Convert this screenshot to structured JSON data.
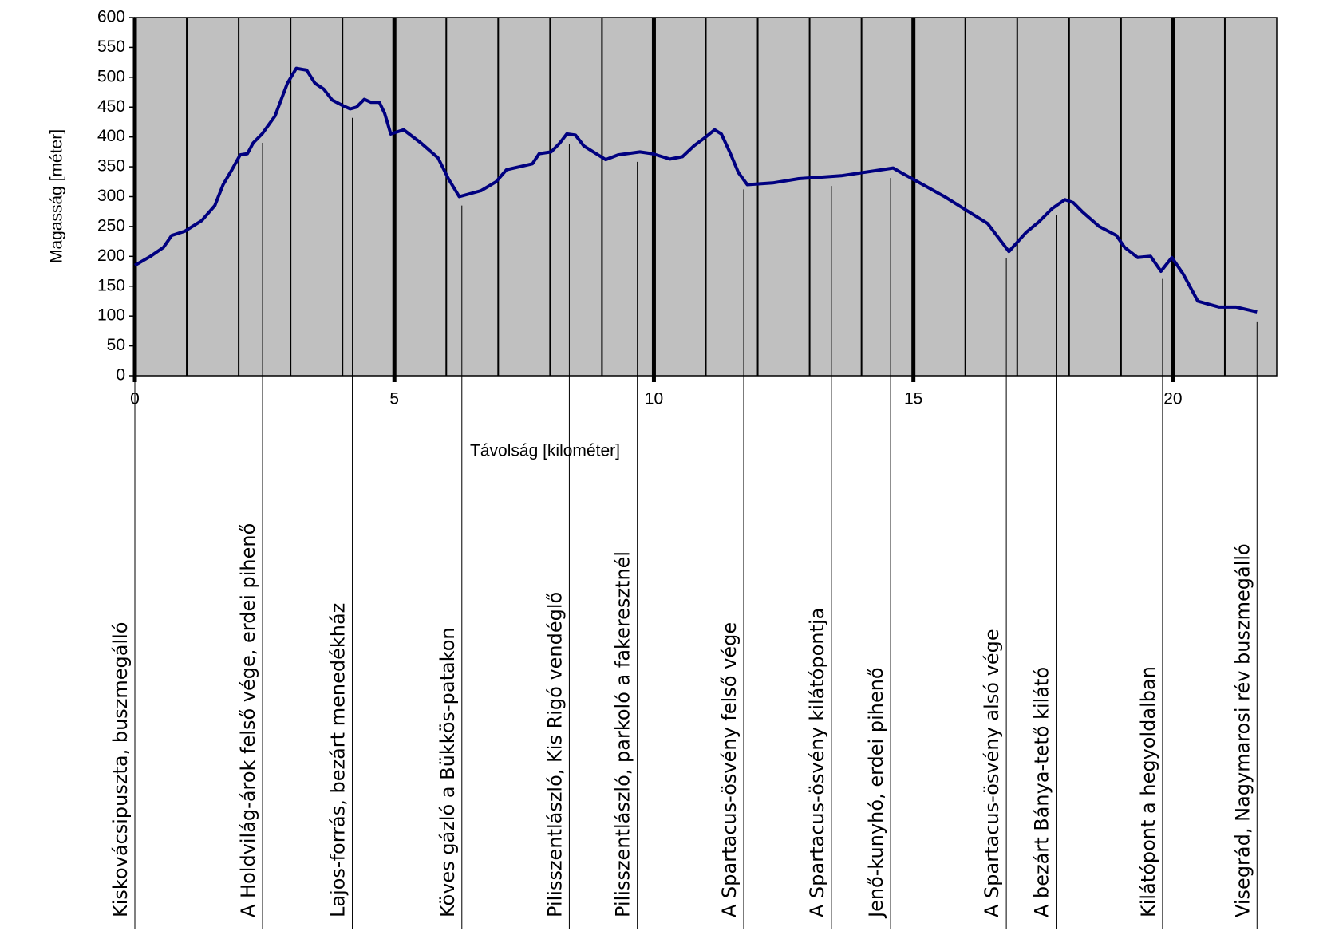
{
  "chart_data": {
    "type": "line",
    "xlabel": "Távolság [kilométer]",
    "ylabel": "Magasság [méter]",
    "xlim": [
      0,
      22
    ],
    "xticks": [
      0,
      5,
      10,
      15,
      20
    ],
    "xgrid": [
      1,
      2,
      3,
      4,
      6,
      7,
      8,
      9,
      11,
      12,
      13,
      14,
      16,
      17,
      18,
      19,
      21
    ],
    "ylim": [
      0,
      600
    ],
    "yticks": [
      0,
      50,
      100,
      150,
      200,
      250,
      300,
      350,
      400,
      450,
      500,
      550,
      600
    ],
    "background": "#c0c0c0",
    "series": [
      {
        "color": "#000080",
        "x": [
          0,
          0.3,
          0.55,
          0.71,
          0.96,
          1.29,
          1.54,
          1.7,
          1.87,
          2.03,
          2.17,
          2.28,
          2.45,
          2.7,
          2.94,
          3.11,
          3.31,
          3.47,
          3.64,
          3.8,
          4.02,
          4.15,
          4.27,
          4.42,
          4.55,
          4.71,
          4.81,
          4.93,
          5.18,
          5.51,
          5.84,
          6.04,
          6.25,
          6.67,
          6.96,
          7.16,
          7.41,
          7.66,
          7.79,
          8.02,
          8.19,
          8.32,
          8.49,
          8.65,
          9.07,
          9.31,
          9.73,
          9.97,
          10.31,
          10.55,
          10.77,
          10.97,
          11.17,
          11.3,
          11.46,
          11.63,
          11.8,
          12.29,
          12.79,
          13.61,
          14.61,
          14.77,
          15.6,
          16.43,
          16.84,
          17.17,
          17.42,
          17.67,
          17.92,
          18.08,
          18.25,
          18.58,
          18.91,
          19.07,
          19.32,
          19.57,
          19.77,
          19.98,
          20.2,
          20.48,
          20.89,
          21.22,
          21.47,
          21.62
        ],
        "values": [
          185,
          200,
          215,
          235,
          242,
          260,
          285,
          320,
          345,
          370,
          372,
          390,
          405,
          435,
          490,
          515,
          512,
          490,
          480,
          462,
          452,
          447,
          450,
          463,
          458,
          458,
          440,
          405,
          412,
          390,
          365,
          330,
          300,
          310,
          325,
          345,
          350,
          355,
          372,
          375,
          390,
          405,
          403,
          385,
          362,
          370,
          375,
          372,
          363,
          367,
          385,
          398,
          412,
          405,
          375,
          340,
          320,
          323,
          330,
          335,
          348,
          340,
          300,
          255,
          208,
          240,
          258,
          280,
          295,
          290,
          275,
          250,
          235,
          215,
          198,
          200,
          175,
          198,
          170,
          125,
          115,
          115,
          110,
          107
        ]
      }
    ],
    "waypoints": {
      "x": [
        0,
        2.46,
        4.19,
        6.3,
        8.37,
        9.68,
        11.73,
        13.42,
        14.56,
        16.79,
        17.75,
        19.8,
        21.62
      ],
      "labels": [
        "Kiskovácsipuszta, buszmegálló",
        "A Holdvilág-árok felső vége, erdei pihenő",
        "Lajos-forrás, bezárt menedékház",
        "Köves gázló a Bükkös-patakon",
        "Pilisszentlászló, Kis Rigó vendéglő",
        "Pilisszentlászló, parkoló a fakeresztnél",
        "A Spartacus-ösvény felső vége",
        "A Spartacus-ösvény kilátópontja",
        "Jenő-kunyhó, erdei pihenő",
        "A Spartacus-ösvény alsó vége",
        "A bezárt Bánya-tető kilátó",
        "Kilátópont a hegyoldalban",
        "Visegrád, Nagymarosi rév buszmegálló"
      ]
    }
  }
}
